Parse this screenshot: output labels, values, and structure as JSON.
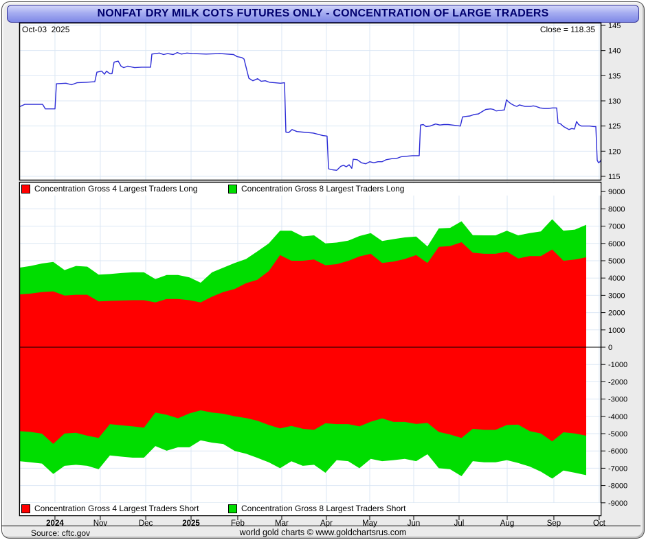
{
  "window": {
    "title": "NONFAT DRY MILK COTS FUTURES ONLY - CONCENTRATION OF LARGE TRADERS"
  },
  "price_panel": {
    "date_label": "Oct-03  2025",
    "close_label": "Close = 118.35"
  },
  "legends": {
    "top": [
      {
        "swatch": "#ff0000",
        "label": "Concentration Gross 4 Largest Traders Long"
      },
      {
        "swatch": "#00dd00",
        "label": "Concentration Gross 8 Largest Traders Long"
      }
    ],
    "bottom": [
      {
        "swatch": "#ff0000",
        "label": "Concentration Gross 4 Largest Traders Short"
      },
      {
        "swatch": "#00dd00",
        "label": "Concentration Gross 8 Largest Traders Short"
      }
    ]
  },
  "footer": {
    "source": "Source: cftc.gov",
    "credit": "world gold charts © www.goldchartsrus.com"
  },
  "colors": {
    "price_line": "#2b2bd6",
    "red": "#ff0000",
    "green": "#00dd00",
    "grid": "#dbe7f4",
    "frame": "#000000",
    "zero_line": "#000000",
    "title_text": "#00006e",
    "window_bg": "#ebebeb",
    "plot_bg": "#ffffff"
  },
  "x_ticks": [
    {
      "label": "2024",
      "week": 3.19,
      "bold": true
    },
    {
      "label": "Nov",
      "week": 7.24,
      "bold": false
    },
    {
      "label": "Dec",
      "week": 11.3,
      "bold": false
    },
    {
      "label": "2025",
      "week": 15.35,
      "bold": true
    },
    {
      "label": "Feb",
      "week": 19.52,
      "bold": false
    },
    {
      "label": "Mar",
      "week": 23.45,
      "bold": false
    },
    {
      "label": "Apr",
      "week": 27.44,
      "bold": false
    },
    {
      "label": "May",
      "week": 31.31,
      "bold": false
    },
    {
      "label": "Jun",
      "week": 35.24,
      "bold": false
    },
    {
      "label": "Jul",
      "week": 39.29,
      "bold": false
    },
    {
      "label": "Aug",
      "week": 43.59,
      "bold": false
    },
    {
      "label": "Sep",
      "week": 47.76,
      "bold": false
    },
    {
      "label": "Oct",
      "week": 51.81,
      "bold": false
    }
  ],
  "chart_data": [
    {
      "type": "line",
      "title": "Nonfat Dry Milk futures price (weekly, Oct 2024 - Oct 2025)",
      "x_unit": "weeks since start of chart",
      "ylim": [
        115,
        145
      ],
      "yticks": [
        145,
        140,
        135,
        130,
        125,
        120,
        115
      ],
      "grid": true,
      "annotations": {
        "date": "Oct-03  2025",
        "close_value": 118.35
      },
      "series": [
        {
          "name": "Close",
          "color": "#2b2bd6",
          "points": [
            [
              0,
              128.8
            ],
            [
              0.49,
              129.3
            ],
            [
              2.09,
              129.3
            ],
            [
              2.33,
              128.4
            ],
            [
              3.19,
              128.4
            ],
            [
              3.32,
              133.4
            ],
            [
              4.17,
              133.5
            ],
            [
              4.67,
              133.2
            ],
            [
              5.16,
              133.6
            ],
            [
              6.02,
              133.7
            ],
            [
              6.75,
              133.8
            ],
            [
              6.94,
              135.7
            ],
            [
              7.37,
              135.9
            ],
            [
              7.61,
              135.3
            ],
            [
              7.8,
              135.9
            ],
            [
              8.1,
              135.4
            ],
            [
              8.29,
              135.4
            ],
            [
              8.47,
              137.7
            ],
            [
              8.84,
              137.9
            ],
            [
              9.09,
              136.9
            ],
            [
              9.33,
              136.6
            ],
            [
              9.7,
              136.9
            ],
            [
              10.31,
              136.6
            ],
            [
              10.93,
              136.7
            ],
            [
              11.73,
              136.7
            ],
            [
              11.85,
              139.3
            ],
            [
              12.52,
              139.5
            ],
            [
              12.89,
              139.2
            ],
            [
              13.26,
              139.4
            ],
            [
              13.75,
              139.2
            ],
            [
              14.12,
              139.6
            ],
            [
              14.49,
              139.3
            ],
            [
              14.98,
              139.5
            ],
            [
              15.47,
              139.4
            ],
            [
              16.7,
              139.3
            ],
            [
              17.93,
              139.4
            ],
            [
              19.15,
              139.2
            ],
            [
              19.46,
              138.8
            ],
            [
              19.89,
              138.6
            ],
            [
              20.08,
              138.3
            ],
            [
              20.51,
              134.5
            ],
            [
              20.87,
              134
            ],
            [
              21.3,
              134.4
            ],
            [
              21.61,
              133.9
            ],
            [
              21.98,
              134
            ],
            [
              22.35,
              133.7
            ],
            [
              22.84,
              133.6
            ],
            [
              23.33,
              133.5
            ],
            [
              23.7,
              133.6
            ],
            [
              23.82,
              123.8
            ],
            [
              24.07,
              123.7
            ],
            [
              24.37,
              124.3
            ],
            [
              24.8,
              123.9
            ],
            [
              25.29,
              123.8
            ],
            [
              25.78,
              123.7
            ],
            [
              26.27,
              123.6
            ],
            [
              26.77,
              123.3
            ],
            [
              27.13,
              123.1
            ],
            [
              27.5,
              123
            ],
            [
              27.63,
              116.5
            ],
            [
              27.99,
              116.3
            ],
            [
              28.36,
              116.2
            ],
            [
              28.73,
              117
            ],
            [
              28.98,
              117.2
            ],
            [
              29.22,
              116.9
            ],
            [
              29.47,
              117.3
            ],
            [
              29.71,
              116.6
            ],
            [
              29.84,
              118.4
            ],
            [
              30.2,
              118.3
            ],
            [
              30.57,
              117.7
            ],
            [
              30.94,
              117.5
            ],
            [
              31.31,
              117.9
            ],
            [
              31.68,
              117.7
            ],
            [
              32.05,
              117.9
            ],
            [
              32.41,
              117.9
            ],
            [
              32.78,
              118.3
            ],
            [
              33.27,
              118.5
            ],
            [
              33.76,
              118.6
            ],
            [
              34.13,
              118.9
            ],
            [
              34.62,
              119
            ],
            [
              35.11,
              119.1
            ],
            [
              35.73,
              119.1
            ],
            [
              35.85,
              125.2
            ],
            [
              36.1,
              125.3
            ],
            [
              36.34,
              124.9
            ],
            [
              36.71,
              125
            ],
            [
              37.2,
              125.4
            ],
            [
              37.57,
              125.2
            ],
            [
              37.94,
              125.3
            ],
            [
              38.31,
              125.3
            ],
            [
              38.67,
              125.2
            ],
            [
              39.04,
              125.1
            ],
            [
              39.41,
              125
            ],
            [
              39.6,
              126.8
            ],
            [
              39.9,
              126.9
            ],
            [
              40.27,
              127
            ],
            [
              40.64,
              127.3
            ],
            [
              41.01,
              127.4
            ],
            [
              41.38,
              127.9
            ],
            [
              41.68,
              128.3
            ],
            [
              42.11,
              128.4
            ],
            [
              42.36,
              128.3
            ],
            [
              42.6,
              128
            ],
            [
              42.97,
              128.1
            ],
            [
              43.34,
              128.2
            ],
            [
              43.53,
              130.2
            ],
            [
              43.71,
              129.8
            ],
            [
              43.95,
              129.4
            ],
            [
              44.2,
              129.1
            ],
            [
              44.45,
              128.9
            ],
            [
              44.69,
              129.2
            ],
            [
              45.18,
              128.9
            ],
            [
              45.67,
              128.9
            ],
            [
              45.92,
              129
            ],
            [
              46.16,
              128.9
            ],
            [
              46.53,
              128.6
            ],
            [
              46.9,
              128.5
            ],
            [
              47.27,
              128.5
            ],
            [
              47.64,
              128.6
            ],
            [
              48.01,
              128.6
            ],
            [
              48.13,
              125.6
            ],
            [
              48.37,
              125.4
            ],
            [
              48.62,
              124.9
            ],
            [
              48.87,
              124.6
            ],
            [
              49.11,
              124.3
            ],
            [
              49.36,
              124.5
            ],
            [
              49.6,
              124.4
            ],
            [
              49.79,
              125.9
            ],
            [
              49.97,
              125.3
            ],
            [
              50.22,
              125
            ],
            [
              50.59,
              125
            ],
            [
              50.95,
              125
            ],
            [
              51.32,
              124.9
            ],
            [
              51.51,
              124.9
            ],
            [
              51.63,
              118.2
            ],
            [
              51.75,
              117.7
            ],
            [
              51.88,
              117.9
            ],
            [
              52,
              118.35
            ]
          ]
        }
      ]
    },
    {
      "type": "area",
      "title": "Concentration of large traders (contracts, weekly COT data)",
      "x_unit": "weeks since start of chart",
      "ylim": [
        -9500,
        9500
      ],
      "yticks": [
        9000,
        8000,
        7000,
        6000,
        5000,
        4000,
        3000,
        2000,
        1000,
        0,
        -1000,
        -2000,
        -3000,
        -4000,
        -5000,
        -6000,
        -7000,
        -8000,
        -9000
      ],
      "baseline": 0,
      "grid": true,
      "x": [
        0,
        1.01,
        2.03,
        3.04,
        4.05,
        5.07,
        6.08,
        7.09,
        8.1,
        9.12,
        10.13,
        11.14,
        12.16,
        13.17,
        14.18,
        15.2,
        16.21,
        17.22,
        18.23,
        19.25,
        20.26,
        21.27,
        22.29,
        23.3,
        24.31,
        25.33,
        26.34,
        27.35,
        28.36,
        29.38,
        30.39,
        31.4,
        32.42,
        33.43,
        34.44,
        35.46,
        36.47,
        37.48,
        38.49,
        39.51,
        40.52,
        41.53,
        42.55,
        43.56,
        44.57,
        45.59,
        46.6,
        47.61,
        48.62,
        49.64,
        50.65
      ],
      "series": [
        {
          "name": "Concentration Gross 8 Largest Traders Long",
          "color": "#00dd00",
          "values": [
            4600,
            4700,
            4840,
            4930,
            4460,
            4700,
            4660,
            4200,
            4230,
            4290,
            4330,
            4330,
            3940,
            4180,
            4180,
            4040,
            3730,
            4330,
            4600,
            4870,
            5100,
            5540,
            6000,
            6740,
            6740,
            6410,
            6470,
            6000,
            6050,
            6160,
            6430,
            6600,
            6140,
            6250,
            6350,
            6400,
            5830,
            6870,
            6900,
            7280,
            6480,
            6470,
            6470,
            6740,
            6470,
            6600,
            6700,
            7400,
            6740,
            6800,
            7080
          ]
        },
        {
          "name": "Concentration Gross 4 Largest Traders Long",
          "color": "#ff0000",
          "values": [
            3050,
            3100,
            3190,
            3230,
            2990,
            3030,
            3030,
            2650,
            2680,
            2700,
            2720,
            2720,
            2590,
            2790,
            2790,
            2720,
            2590,
            2920,
            3190,
            3370,
            3700,
            3900,
            4400,
            5330,
            5000,
            5000,
            5070,
            4740,
            4800,
            4990,
            5250,
            5400,
            4870,
            4950,
            5100,
            5330,
            4870,
            5800,
            5850,
            6070,
            5470,
            5400,
            5400,
            5530,
            5130,
            5270,
            5270,
            5650,
            5000,
            5070,
            5200
          ]
        },
        {
          "name": "Concentration Gross 8 Largest Traders Short",
          "color": "#00dd00",
          "values": [
            -6590,
            -6660,
            -6730,
            -7330,
            -6860,
            -6800,
            -6860,
            -7060,
            -6260,
            -6330,
            -6390,
            -6390,
            -5720,
            -5990,
            -5790,
            -5790,
            -5390,
            -5520,
            -5600,
            -6000,
            -6160,
            -6400,
            -6660,
            -7000,
            -6600,
            -6860,
            -6800,
            -7260,
            -6530,
            -6590,
            -7000,
            -6460,
            -6590,
            -6530,
            -6460,
            -6590,
            -6190,
            -7000,
            -7060,
            -7460,
            -6590,
            -6660,
            -6660,
            -6530,
            -6700,
            -6900,
            -7200,
            -7600,
            -7130,
            -7260,
            -7400
          ]
        },
        {
          "name": "Concentration Gross 4 Largest Traders Short",
          "color": "#ff0000",
          "values": [
            -4850,
            -4900,
            -5000,
            -5590,
            -4990,
            -4950,
            -5120,
            -5250,
            -4450,
            -4520,
            -4580,
            -4650,
            -3780,
            -3910,
            -4110,
            -3830,
            -3650,
            -3780,
            -3850,
            -4000,
            -4100,
            -4250,
            -4500,
            -4700,
            -4550,
            -4720,
            -4780,
            -4400,
            -4450,
            -4450,
            -4580,
            -4310,
            -4120,
            -4320,
            -4320,
            -4440,
            -4380,
            -4900,
            -5050,
            -5250,
            -4720,
            -4780,
            -4780,
            -4500,
            -4480,
            -4850,
            -4990,
            -5450,
            -4920,
            -4990,
            -5120
          ]
        }
      ]
    }
  ]
}
